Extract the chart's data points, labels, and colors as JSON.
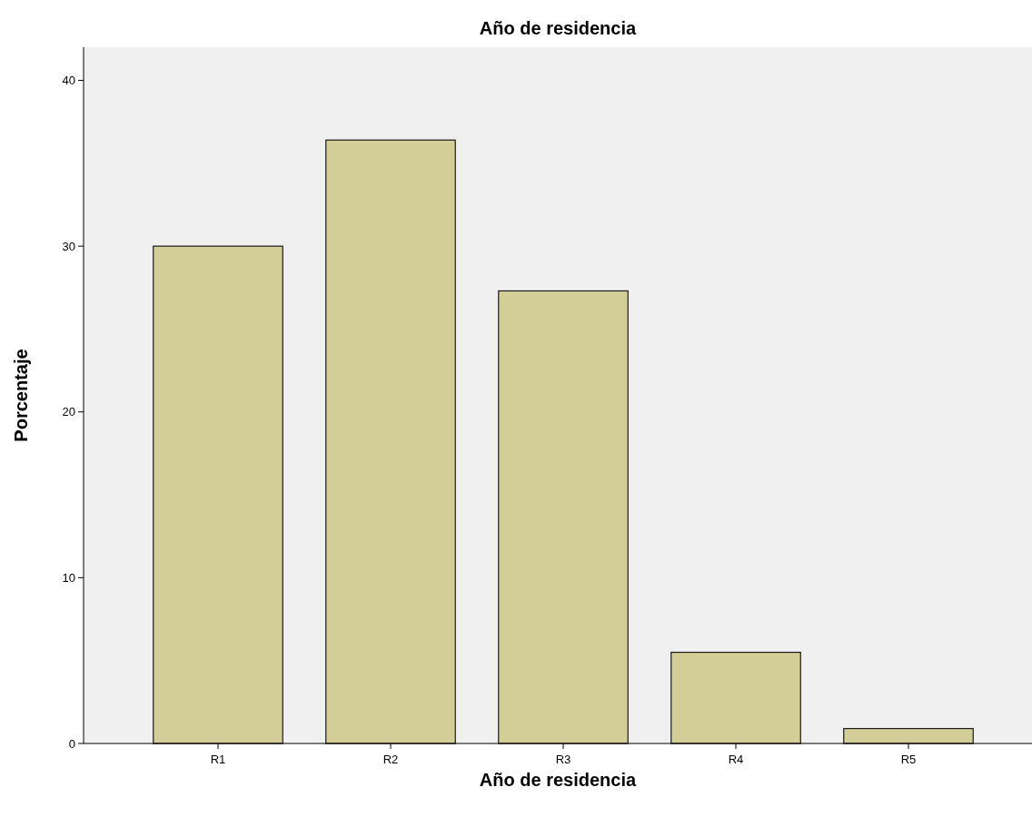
{
  "chart_data": {
    "type": "bar",
    "title": "Año de residencia",
    "xlabel": "Año de residencia",
    "ylabel": "Porcentaje",
    "categories": [
      "R1",
      "R2",
      "R3",
      "R4",
      "R5"
    ],
    "values": [
      30.0,
      36.4,
      27.3,
      5.5,
      0.9
    ],
    "color": "#d3ce97",
    "ylim": [
      0,
      42
    ],
    "yticks": [
      0,
      10,
      20,
      30,
      40
    ],
    "grid": false
  }
}
